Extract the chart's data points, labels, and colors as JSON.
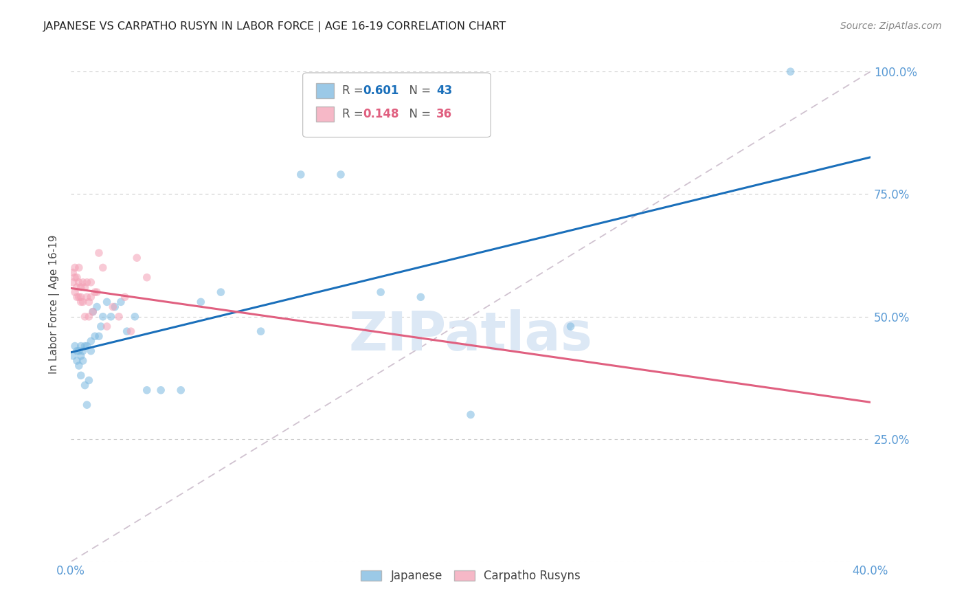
{
  "title": "JAPANESE VS CARPATHO RUSYN IN LABOR FORCE | AGE 16-19 CORRELATION CHART",
  "source": "Source: ZipAtlas.com",
  "ylabel": "In Labor Force | Age 16-19",
  "watermark": "ZIPatlas",
  "xlim": [
    0.0,
    0.4
  ],
  "ylim": [
    0.0,
    1.05
  ],
  "xticks": [
    0.0,
    0.05,
    0.1,
    0.15,
    0.2,
    0.25,
    0.3,
    0.35,
    0.4
  ],
  "yticks": [
    0.0,
    0.25,
    0.5,
    0.75,
    1.0
  ],
  "xtick_labels": [
    "0.0%",
    "",
    "",
    "",
    "",
    "",
    "",
    "",
    "40.0%"
  ],
  "ytick_labels": [
    "",
    "25.0%",
    "50.0%",
    "75.0%",
    "100.0%"
  ],
  "japanese_x": [
    0.001,
    0.002,
    0.003,
    0.003,
    0.004,
    0.004,
    0.005,
    0.005,
    0.005,
    0.006,
    0.006,
    0.007,
    0.007,
    0.008,
    0.008,
    0.009,
    0.01,
    0.01,
    0.011,
    0.012,
    0.013,
    0.014,
    0.015,
    0.016,
    0.018,
    0.02,
    0.022,
    0.025,
    0.028,
    0.032,
    0.038,
    0.045,
    0.055,
    0.065,
    0.075,
    0.095,
    0.115,
    0.135,
    0.155,
    0.175,
    0.2,
    0.25,
    0.36
  ],
  "japanese_y": [
    0.42,
    0.44,
    0.43,
    0.41,
    0.4,
    0.43,
    0.42,
    0.38,
    0.44,
    0.41,
    0.43,
    0.44,
    0.36,
    0.32,
    0.44,
    0.37,
    0.45,
    0.43,
    0.51,
    0.46,
    0.52,
    0.46,
    0.48,
    0.5,
    0.53,
    0.5,
    0.52,
    0.53,
    0.47,
    0.5,
    0.35,
    0.35,
    0.35,
    0.53,
    0.55,
    0.47,
    0.79,
    0.79,
    0.55,
    0.54,
    0.3,
    0.48,
    1.0
  ],
  "rusyn_x": [
    0.001,
    0.001,
    0.002,
    0.002,
    0.002,
    0.003,
    0.003,
    0.003,
    0.004,
    0.004,
    0.004,
    0.005,
    0.005,
    0.005,
    0.006,
    0.006,
    0.007,
    0.007,
    0.008,
    0.008,
    0.009,
    0.009,
    0.01,
    0.01,
    0.011,
    0.012,
    0.013,
    0.014,
    0.016,
    0.018,
    0.021,
    0.024,
    0.027,
    0.03,
    0.033,
    0.038
  ],
  "rusyn_y": [
    0.57,
    0.59,
    0.55,
    0.6,
    0.58,
    0.54,
    0.56,
    0.58,
    0.54,
    0.57,
    0.6,
    0.53,
    0.56,
    0.54,
    0.57,
    0.53,
    0.5,
    0.56,
    0.54,
    0.57,
    0.53,
    0.5,
    0.57,
    0.54,
    0.51,
    0.55,
    0.55,
    0.63,
    0.6,
    0.48,
    0.52,
    0.5,
    0.54,
    0.47,
    0.62,
    0.58
  ],
  "japanese_color": "#7ab8e0",
  "rusyn_color": "#f4a0b5",
  "japanese_line_color": "#1a6fba",
  "rusyn_line_color": "#e06080",
  "dashed_line_color": "#c8b8c8",
  "r_japanese": "0.601",
  "n_japanese": "43",
  "r_rusyn": "0.148",
  "n_rusyn": "36",
  "legend_label_japanese": "Japanese",
  "legend_label_rusyn": "Carpatho Rusyns",
  "background_color": "#ffffff",
  "grid_color": "#cccccc",
  "axis_color": "#5b9bd5",
  "title_color": "#222222",
  "source_color": "#888888",
  "watermark_color": "#dce8f5",
  "marker_size": 70,
  "marker_alpha": 0.55,
  "line_width": 2.2
}
